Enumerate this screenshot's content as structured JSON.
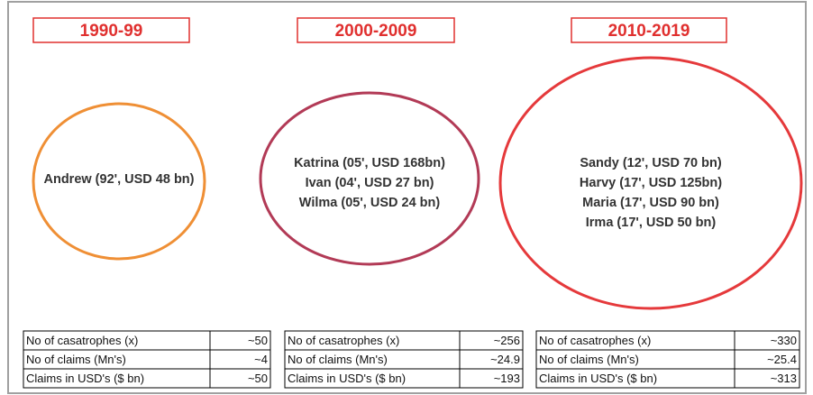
{
  "columns": [
    {
      "period": "1990-99",
      "storms": [
        "Andrew (92', USD 48 bn)"
      ],
      "table": [
        [
          "No of casatrophes (x)",
          "~50"
        ],
        [
          "No of claims (Mn's)",
          "~4"
        ],
        [
          "Claims in USD's ($ bn)",
          "~50"
        ]
      ]
    },
    {
      "period": "2000-2009",
      "storms": [
        "Katrina (05', USD 168bn)",
        "Ivan (04', USD 27 bn)",
        "Wilma (05', USD 24 bn)"
      ],
      "table": [
        [
          "No of casatrophes (x)",
          "~256"
        ],
        [
          "No of claims (Mn's)",
          "~24.9"
        ],
        [
          "Claims in USD's ($ bn)",
          "~193"
        ]
      ]
    },
    {
      "period": "2010-2019",
      "storms": [
        "Sandy (12', USD 70 bn)",
        "Harvy (17', USD 125bn)",
        "Maria (17', USD 90 bn)",
        "Irma (17', USD 50 bn)"
      ],
      "table": [
        [
          "No of casatrophes (x)",
          "~330"
        ],
        [
          "No of claims (Mn's)",
          "~25.4"
        ],
        [
          "Claims in USD's ($ bn)",
          "~313"
        ]
      ]
    }
  ]
}
